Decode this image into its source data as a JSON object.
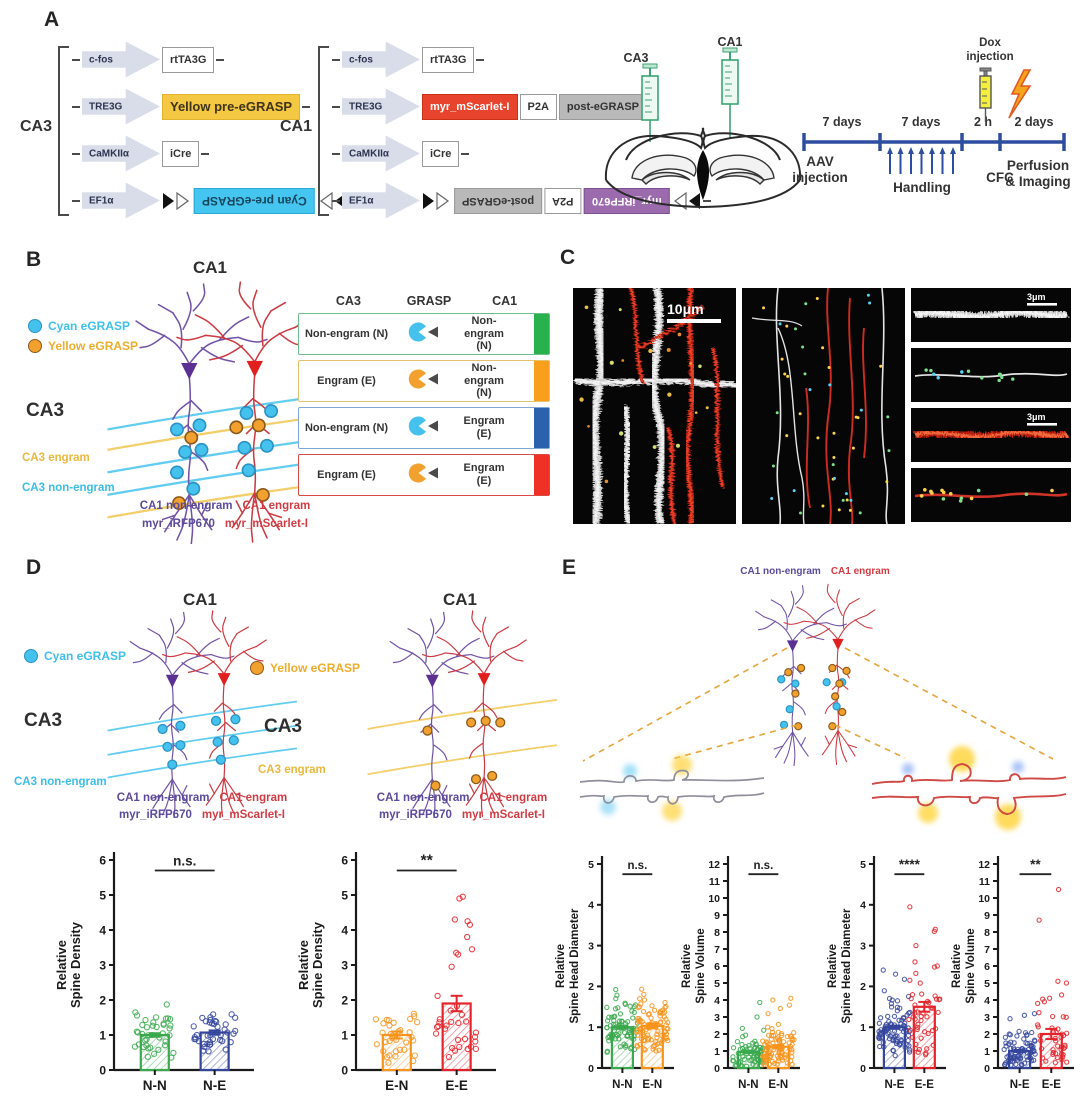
{
  "colors": {
    "green": "#3aa94d",
    "orange": "#f7941d",
    "blue": "#34459c",
    "red": "#e3242b",
    "cyan": "#45c1ee",
    "yellow_box": "#f5c843",
    "cyan_box": "#45c6f0",
    "red_box": "#e8432c",
    "purple_box": "#9c6bae",
    "timeline_blue": "#2d4da1",
    "neuron_purple": "#7152a5",
    "neuron_red": "#cc3a42",
    "arc_cyan": "#63cdf0",
    "arc_yellow": "#f3cf6b"
  },
  "panels": {
    "A": {
      "label": "A",
      "ca3": {
        "group_label": "CA3",
        "rows": [
          {
            "promoter": "c-fos",
            "flanked": false,
            "elements": [
              {
                "text": "rtTA3G",
                "style": "white",
                "flipped": false
              }
            ]
          },
          {
            "promoter": "TRE3G",
            "flanked": false,
            "elements": [
              {
                "text": "Yellow pre-eGRASP",
                "style": "yellow",
                "flipped": false
              }
            ]
          },
          {
            "promoter": "CaMKIIα",
            "flanked": false,
            "elements": [
              {
                "text": "iCre",
                "style": "white",
                "flipped": false
              }
            ]
          },
          {
            "promoter": "EF1α",
            "flanked": true,
            "elements": [
              {
                "text": "Cyan pre-eGRASP",
                "style": "cyan",
                "flipped": true
              }
            ]
          }
        ]
      },
      "ca1": {
        "group_label": "CA1",
        "rows": [
          {
            "promoter": "c-fos",
            "flanked": false,
            "elements": [
              {
                "text": "rtTA3G",
                "style": "white",
                "flipped": false
              }
            ]
          },
          {
            "promoter": "TRE3G",
            "flanked": false,
            "elements": [
              {
                "text": "myr_mScarlet-I",
                "style": "red",
                "flipped": false
              },
              {
                "text": "P2A",
                "style": "white",
                "flipped": false
              },
              {
                "text": "post-eGRASP",
                "style": "gray",
                "flipped": false
              }
            ]
          },
          {
            "promoter": "CaMKIIα",
            "flanked": false,
            "elements": [
              {
                "text": "iCre",
                "style": "white",
                "flipped": false
              }
            ]
          },
          {
            "promoter": "EF1α",
            "flanked": true,
            "elements": [
              {
                "text": "post-eGRASP",
                "style": "gray",
                "flipped": true
              },
              {
                "text": "P2A",
                "style": "white",
                "flipped": true
              },
              {
                "text": "myr_iRFP670",
                "style": "purple",
                "flipped": true
              }
            ]
          }
        ]
      },
      "brain": {
        "left_syringe": "CA3",
        "right_syringe": "CA1"
      },
      "timeline": {
        "segments": [
          "7 days",
          "7 days",
          "2 h",
          "2 days"
        ],
        "below": [
          "AAV\ninjection",
          "Handling",
          "CFC",
          "Perfusion\n& Imaging"
        ],
        "dox": "Dox\ninjection",
        "handling_arrows": 7
      }
    },
    "B": {
      "label": "B",
      "title": "CA1",
      "legend": [
        {
          "label": "Cyan eGRASP"
        },
        {
          "label": "Yellow eGRASP"
        }
      ],
      "ca3_label": "CA3",
      "arc_engram": "CA3 engram",
      "arc_nonengram": "CA3 non-engram",
      "bottom1_left": "CA1 non-engram",
      "bottom1_right": "CA1 engram",
      "bottom2_left": "myr_iRFP670",
      "bottom2_right": "myr_mScarlet-I",
      "table": {
        "headers": [
          "CA3",
          "GRASP",
          "CA1"
        ],
        "rows": [
          {
            "ca3": "Non-engram (N)",
            "grasp": "cyan",
            "ca1": "Non-engram (N)",
            "bar": "#28b14c",
            "border": "#6abf8a"
          },
          {
            "ca3": "Engram (E)",
            "grasp": "orange",
            "ca1": "Non-engram (N)",
            "bar": "#f8a01e",
            "border": "#e5c36c"
          },
          {
            "ca3": "Non-engram (N)",
            "grasp": "cyan",
            "ca1": "Engram (E)",
            "bar": "#2a62ae",
            "border": "#7fa8d6"
          },
          {
            "ca3": "Engram (E)",
            "grasp": "orange",
            "ca1": "Engram (E)",
            "bar": "#ee3124",
            "border": "#d94a42"
          }
        ]
      }
    },
    "C": {
      "label": "C",
      "scale_large": "10μm",
      "scale_small_1": "3μm",
      "scale_small_2": "3μm"
    },
    "D": {
      "label": "D",
      "left": {
        "title": "CA1",
        "legend": "Cyan eGRASP",
        "ca3": "CA3",
        "arc_label": "CA3 non-engram",
        "bottom1_left": "CA1 non-engram",
        "bottom1_right": "CA1 engram",
        "bottom2_left": "myr_iRFP670",
        "bottom2_right": "myr_mScarlet-I"
      },
      "right": {
        "title": "CA1",
        "legend": "Yellow eGRASP",
        "ca3": "CA3",
        "arc_label": "CA3 engram",
        "bottom1_left": "CA1 non-engram",
        "bottom1_right": "CA1 engram",
        "bottom2_left": "myr_iRFP670",
        "bottom2_right": "myr_mScarlet-I"
      }
    },
    "E": {
      "label": "E",
      "top_left": "CA1 non-engram",
      "top_right": "CA1 engram"
    }
  },
  "chart_data": [
    {
      "id": "d1",
      "type": "bar",
      "ylabel": [
        "Relative",
        "Spine Density"
      ],
      "ylim": [
        0,
        6
      ],
      "ytick": 1,
      "categories": [
        "N-N",
        "N-E"
      ],
      "values": [
        1.0,
        1.07
      ],
      "errors": [
        0.05,
        0.06
      ],
      "colors": [
        "#3aa94d",
        "#34459c"
      ],
      "sig": "n.s.",
      "legend_position": "none",
      "grid": false,
      "scatter": [
        {
          "n": 40,
          "mu": 1.0,
          "sd": 0.38,
          "min": 0.28,
          "max": 2.05,
          "highs": []
        },
        {
          "n": 40,
          "mu": 1.05,
          "sd": 0.32,
          "min": 0.5,
          "max": 2.0,
          "highs": []
        }
      ]
    },
    {
      "id": "d2",
      "type": "bar",
      "ylabel": [
        "Relative",
        "Spine Density"
      ],
      "ylim": [
        0,
        6
      ],
      "ytick": 1,
      "categories": [
        "E-N",
        "E-E"
      ],
      "values": [
        1.0,
        1.9
      ],
      "errors": [
        0.1,
        0.22
      ],
      "colors": [
        "#f7941d",
        "#e3242b"
      ],
      "sig": "**",
      "legend_position": "none",
      "grid": false,
      "scatter": [
        {
          "n": 36,
          "mu": 1.0,
          "sd": 0.5,
          "min": 0.2,
          "max": 2.3,
          "highs": []
        },
        {
          "n": 26,
          "mu": 1.1,
          "sd": 0.55,
          "min": 0.3,
          "max": 2.3,
          "highs": [
            2.95,
            3.3,
            3.35,
            3.45,
            3.8,
            4.15,
            4.25,
            4.3,
            4.9,
            4.95
          ]
        }
      ]
    },
    {
      "id": "e1",
      "type": "bar",
      "ylabel": [
        "Relative",
        "Spine Head Diameter"
      ],
      "ylim": [
        0,
        5
      ],
      "ytick": 1,
      "categories": [
        "N-N",
        "E-N"
      ],
      "values": [
        1.0,
        1.03
      ],
      "errors": [
        0.04,
        0.05
      ],
      "colors": [
        "#3aa94d",
        "#f7941d"
      ],
      "sig": "n.s.",
      "legend_position": "none",
      "grid": false,
      "scatter": [
        {
          "n": 75,
          "mu": 0.95,
          "sd": 0.38,
          "min": 0.3,
          "max": 2.0,
          "highs": []
        },
        {
          "n": 95,
          "mu": 1.0,
          "sd": 0.38,
          "min": 0.35,
          "max": 2.05,
          "highs": []
        }
      ]
    },
    {
      "id": "e2",
      "type": "bar",
      "ylabel": [
        "Relative",
        "Spine Volume"
      ],
      "ylim": [
        0,
        12
      ],
      "ytick": 1,
      "categories": [
        "N-N",
        "E-N"
      ],
      "values": [
        0.95,
        1.25
      ],
      "errors": [
        0.07,
        0.1
      ],
      "colors": [
        "#3aa94d",
        "#f7941d"
      ],
      "sig": "n.s.",
      "legend_position": "none",
      "grid": false,
      "scatter": [
        {
          "n": 70,
          "mu": 0.85,
          "sd": 0.55,
          "min": 0.1,
          "max": 2.9,
          "highs": [
            3.0,
            3.85
          ]
        },
        {
          "n": 88,
          "mu": 1.1,
          "sd": 0.7,
          "min": 0.15,
          "max": 2.85,
          "highs": [
            3.2,
            3.5,
            3.7,
            4.0,
            4.1
          ]
        }
      ]
    },
    {
      "id": "e3",
      "type": "bar",
      "ylabel": [
        "Relative",
        "Spine Head Diameter"
      ],
      "ylim": [
        0,
        5
      ],
      "ytick": 1,
      "categories": [
        "N-E",
        "E-E"
      ],
      "values": [
        1.0,
        1.5
      ],
      "errors": [
        0.04,
        0.12
      ],
      "colors": [
        "#34459c",
        "#e3242b"
      ],
      "sig": "****",
      "legend_position": "none",
      "grid": false,
      "scatter": [
        {
          "n": 85,
          "mu": 0.95,
          "sd": 0.38,
          "min": 0.3,
          "max": 2.25,
          "highs": [
            2.3,
            2.4
          ]
        },
        {
          "n": 46,
          "mu": 1.3,
          "sd": 0.62,
          "min": 0.25,
          "max": 2.6,
          "highs": [
            3.0,
            3.35,
            3.4,
            3.95
          ]
        }
      ]
    },
    {
      "id": "e4",
      "type": "bar",
      "ylabel": [
        "Relative",
        "Spine Volume"
      ],
      "ylim": [
        0,
        12
      ],
      "ytick": 1,
      "categories": [
        "N-E",
        "E-E"
      ],
      "values": [
        1.0,
        2.0
      ],
      "errors": [
        0.06,
        0.3
      ],
      "colors": [
        "#34459c",
        "#e3242b"
      ],
      "sig": "**",
      "legend_position": "none",
      "grid": false,
      "scatter": [
        {
          "n": 80,
          "mu": 0.9,
          "sd": 0.55,
          "min": 0.15,
          "max": 2.6,
          "highs": [
            2.9,
            3.1,
            3.2
          ]
        },
        {
          "n": 38,
          "mu": 1.3,
          "sd": 0.85,
          "min": 0.3,
          "max": 3.3,
          "highs": [
            3.8,
            3.9,
            4.05,
            4.1,
            4.3,
            5.0,
            5.1,
            8.7,
            10.5
          ]
        }
      ]
    }
  ]
}
